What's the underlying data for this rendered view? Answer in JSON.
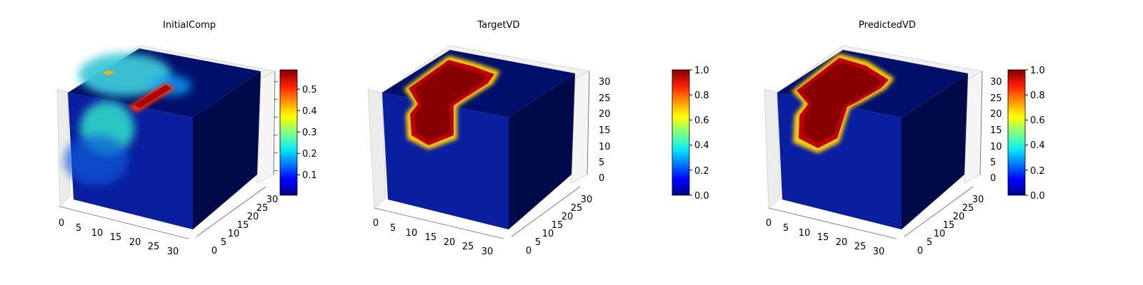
{
  "chart_data": [
    {
      "type": "voxel3d",
      "title": "InitialComp",
      "axes": {
        "x": {
          "range": [
            0,
            32
          ],
          "ticks": [
            0,
            5,
            10,
            15,
            20,
            25,
            30
          ]
        },
        "y": {
          "range": [
            0,
            32
          ],
          "ticks": [
            0,
            5,
            10,
            15,
            20,
            25,
            30
          ]
        },
        "z": {
          "range": [
            0,
            32
          ],
          "ticks": [],
          "show_tick_labels": false
        }
      },
      "colorbar": {
        "colormap": "jet",
        "range": [
          0.02,
          0.59
        ],
        "ticks": [
          0.1,
          0.2,
          0.3,
          0.4,
          0.5
        ],
        "tick_labels": [
          "0.1",
          "0.2",
          "0.3",
          "0.4",
          "0.5"
        ]
      },
      "field": "diffuse",
      "features": {
        "bright_bar_value": 0.58,
        "blob_value": 0.33,
        "background_value": 0.05
      }
    },
    {
      "type": "voxel3d",
      "title": "TargetVD",
      "axes": {
        "x": {
          "range": [
            0,
            32
          ],
          "ticks": [
            0,
            5,
            10,
            15,
            20,
            25,
            30
          ]
        },
        "y": {
          "range": [
            0,
            32
          ],
          "ticks": [
            0,
            5,
            10,
            15,
            20,
            25,
            30
          ]
        },
        "z": {
          "range": [
            0,
            32
          ],
          "ticks": [
            0,
            5,
            10,
            15,
            20,
            25,
            30
          ]
        }
      },
      "colorbar": {
        "colormap": "jet",
        "range": [
          0.0,
          1.0
        ],
        "ticks": [
          0.0,
          0.2,
          0.4,
          0.6,
          0.8,
          1.0
        ],
        "tick_labels": [
          "0.0",
          "0.2",
          "0.4",
          "0.6",
          "0.8",
          "1.0"
        ]
      },
      "field": "binary-region",
      "features": {
        "inside_value": 1.0,
        "outside_value": 0.0
      }
    },
    {
      "type": "voxel3d",
      "title": "PredictedVD",
      "axes": {
        "x": {
          "range": [
            0,
            32
          ],
          "ticks": [
            0,
            5,
            10,
            15,
            20,
            25,
            30
          ]
        },
        "y": {
          "range": [
            0,
            32
          ],
          "ticks": [
            0,
            5,
            10,
            15,
            20,
            25,
            30
          ]
        },
        "z": {
          "range": [
            0,
            32
          ],
          "ticks": [
            0,
            5,
            10,
            15,
            20,
            25,
            30
          ]
        }
      },
      "colorbar": {
        "colormap": "jet",
        "range": [
          0.0,
          1.0
        ],
        "ticks": [
          0.0,
          0.2,
          0.4,
          0.6,
          0.8,
          1.0
        ],
        "tick_labels": [
          "0.0",
          "0.2",
          "0.4",
          "0.6",
          "0.8",
          "1.0"
        ]
      },
      "field": "binary-region",
      "features": {
        "inside_value": 1.0,
        "outside_value": 0.0
      }
    }
  ]
}
